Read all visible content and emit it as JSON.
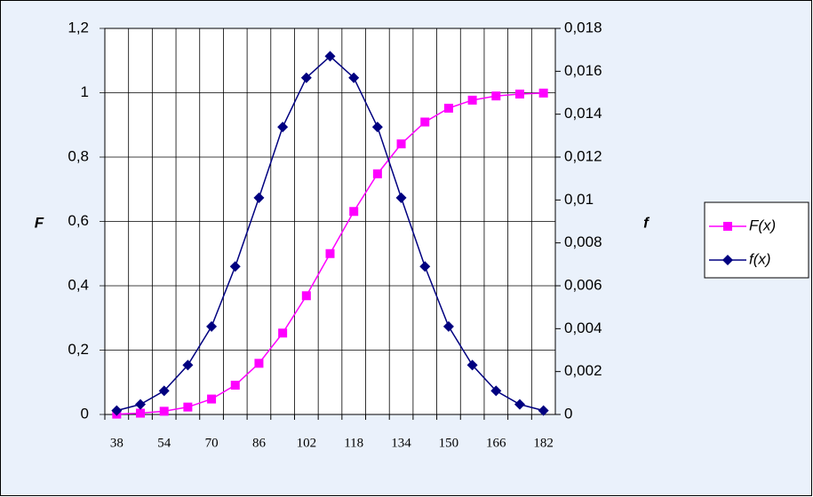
{
  "chart_data": {
    "type": "line",
    "categories": [
      38,
      null,
      54,
      null,
      70,
      null,
      86,
      null,
      102,
      null,
      118,
      null,
      134,
      null,
      150,
      null,
      166,
      null,
      182
    ],
    "y_label": "F",
    "y2_label": "f",
    "series": [
      {
        "name": "F(x)",
        "color": "#ff00ff",
        "marker": "square",
        "values": [
          0.001,
          0.004,
          0.01,
          0.023,
          0.048,
          0.091,
          0.159,
          0.253,
          0.369,
          0.5,
          0.631,
          0.748,
          0.841,
          0.909,
          0.952,
          0.977,
          0.99,
          0.996,
          0.999
        ]
      },
      {
        "name": "f(x)",
        "color": "#000080",
        "marker": "diamond",
        "axis": "y2",
        "values": [
          0.00018,
          0.00047,
          0.0011,
          0.0023,
          0.0041,
          0.0069,
          0.0101,
          0.0134,
          0.0157,
          0.0167,
          0.0157,
          0.0134,
          0.0101,
          0.0069,
          0.0041,
          0.0023,
          0.0011,
          0.00047,
          0.00018
        ]
      }
    ],
    "ylim": [
      0,
      1.2
    ],
    "yticks": [
      0,
      {
        "value": 0.2,
        "label": "0,2"
      },
      {
        "value": 0.4,
        "label": "0,4"
      },
      {
        "value": 0.6,
        "label": "0,6"
      },
      {
        "value": 0.8,
        "label": "0,8"
      },
      1,
      {
        "value": 1.2,
        "label": "1,2"
      }
    ],
    "y2lim": [
      0,
      0.018
    ],
    "y2ticks": [
      0,
      {
        "value": 0.002,
        "label": "0,002"
      },
      {
        "value": 0.004,
        "label": "0,004"
      },
      {
        "value": 0.006,
        "label": "0,006"
      },
      {
        "value": 0.008,
        "label": "0,008"
      },
      {
        "value": 0.01,
        "label": "0,01"
      },
      {
        "value": 0.012,
        "label": "0,012"
      },
      {
        "value": 0.014,
        "label": "0,014"
      },
      {
        "value": 0.016,
        "label": "0,016"
      },
      {
        "value": 0.018,
        "label": "0,018"
      }
    ],
    "grid": true,
    "legend": "right"
  }
}
